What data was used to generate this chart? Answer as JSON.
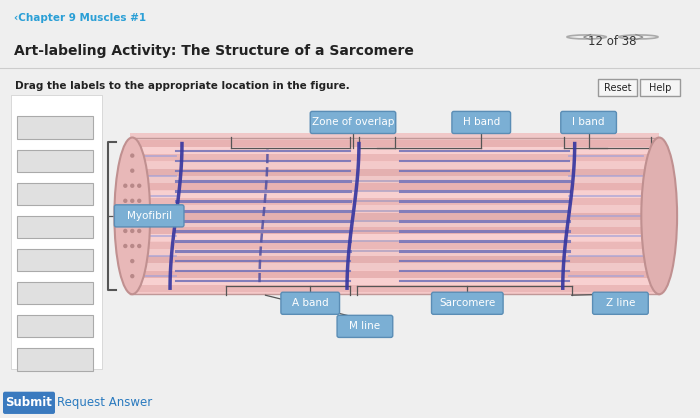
{
  "title": "Art-labeling Activity: The Structure of a Sarcomere",
  "subtitle": "‹Chapter 9 Muscles #1",
  "instruction": "Drag the labels to the appropriate location in the figure.",
  "page_info": "12 of 38",
  "bg_color": "#efefef",
  "panel_bg": "#ffffff",
  "label_bg": "#7bafd4",
  "label_text_color": "#ffffff",
  "label_border": "#5a8db5",
  "muscle_colors": {
    "inner_fill": "#f5c8c8",
    "stripe_dark": "#7070b8",
    "z_line": "#3838a0",
    "end_fill": "#e8b0b0",
    "end_dot": "#c09090"
  },
  "header_bg": "#ffffff",
  "submit_bg": "#3a7abf",
  "line_color": "#555555"
}
